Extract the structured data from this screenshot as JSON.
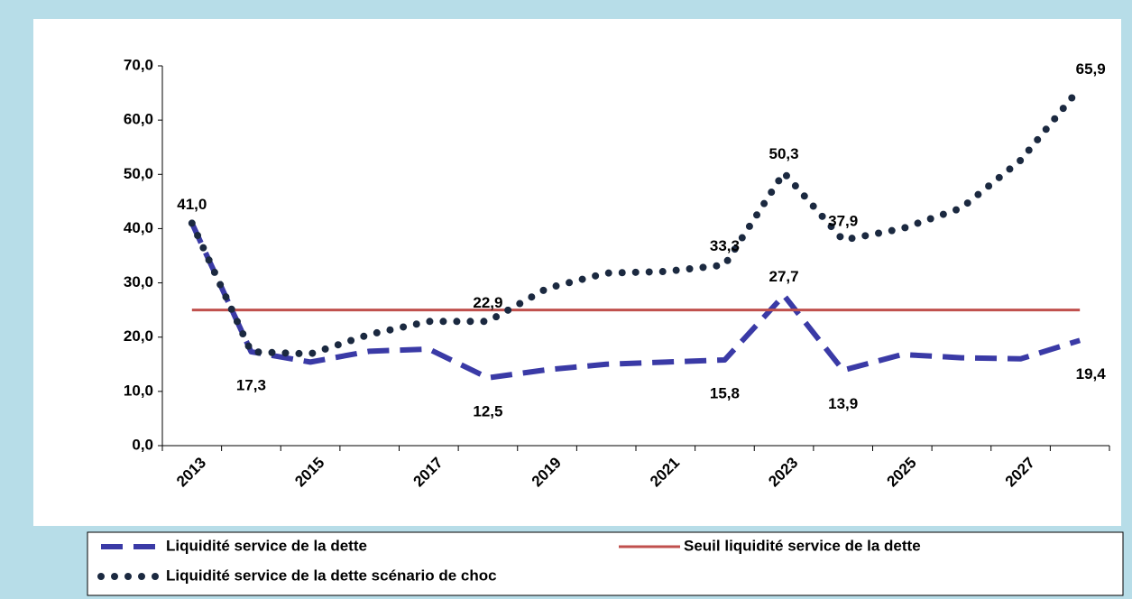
{
  "chart_data": {
    "type": "line",
    "categories": [
      "2013",
      null,
      "2015",
      null,
      "2017",
      null,
      "2019",
      null,
      "2021",
      null,
      "2023",
      null,
      "2025",
      null,
      "2027",
      null
    ],
    "series": [
      {
        "name": "Liquidité service de la dette",
        "color": "#3a3aa6",
        "dash": "dashed",
        "values": [
          41.0,
          17.3,
          15.4,
          17.4,
          17.8,
          12.5,
          14.0,
          15.0,
          15.4,
          15.8,
          27.7,
          13.9,
          16.8,
          16.2,
          16.0,
          19.4
        ],
        "value_labels": [
          "41,0",
          "17,3",
          null,
          null,
          null,
          "12,5",
          null,
          null,
          null,
          "15,8",
          "27,7",
          "13,9",
          null,
          null,
          null,
          "19,4"
        ]
      },
      {
        "name": "Seuil liquidité service de la dette",
        "color": "#c0504d",
        "dash": "solid",
        "values": [
          25,
          25,
          25,
          25,
          25,
          25,
          25,
          25,
          25,
          25,
          25,
          25,
          25,
          25,
          25,
          25
        ]
      },
      {
        "name": "Liquidité service de la dette scénario de choc",
        "color": "#1b2940",
        "dash": "dotted",
        "values": [
          41.0,
          17.3,
          16.9,
          20.5,
          22.9,
          22.9,
          29.0,
          31.8,
          32.1,
          33.3,
          50.3,
          37.9,
          40.0,
          43.8,
          52.6,
          65.9
        ],
        "value_labels": [
          null,
          null,
          null,
          null,
          null,
          "22,9",
          null,
          null,
          null,
          "33,3",
          "50,3",
          "37,9",
          null,
          null,
          null,
          "65,9"
        ]
      }
    ],
    "ylim": [
      0,
      70
    ],
    "yticks": [
      {
        "value": 0,
        "label": "0,0"
      },
      {
        "value": 10,
        "label": "10,0"
      },
      {
        "value": 20,
        "label": "20,0"
      },
      {
        "value": 30,
        "label": "30,0"
      },
      {
        "value": 40,
        "label": "40,0"
      },
      {
        "value": 50,
        "label": "50,0"
      },
      {
        "value": 60,
        "label": "60,0"
      },
      {
        "value": 70,
        "label": "70,0"
      }
    ],
    "grid": false
  }
}
